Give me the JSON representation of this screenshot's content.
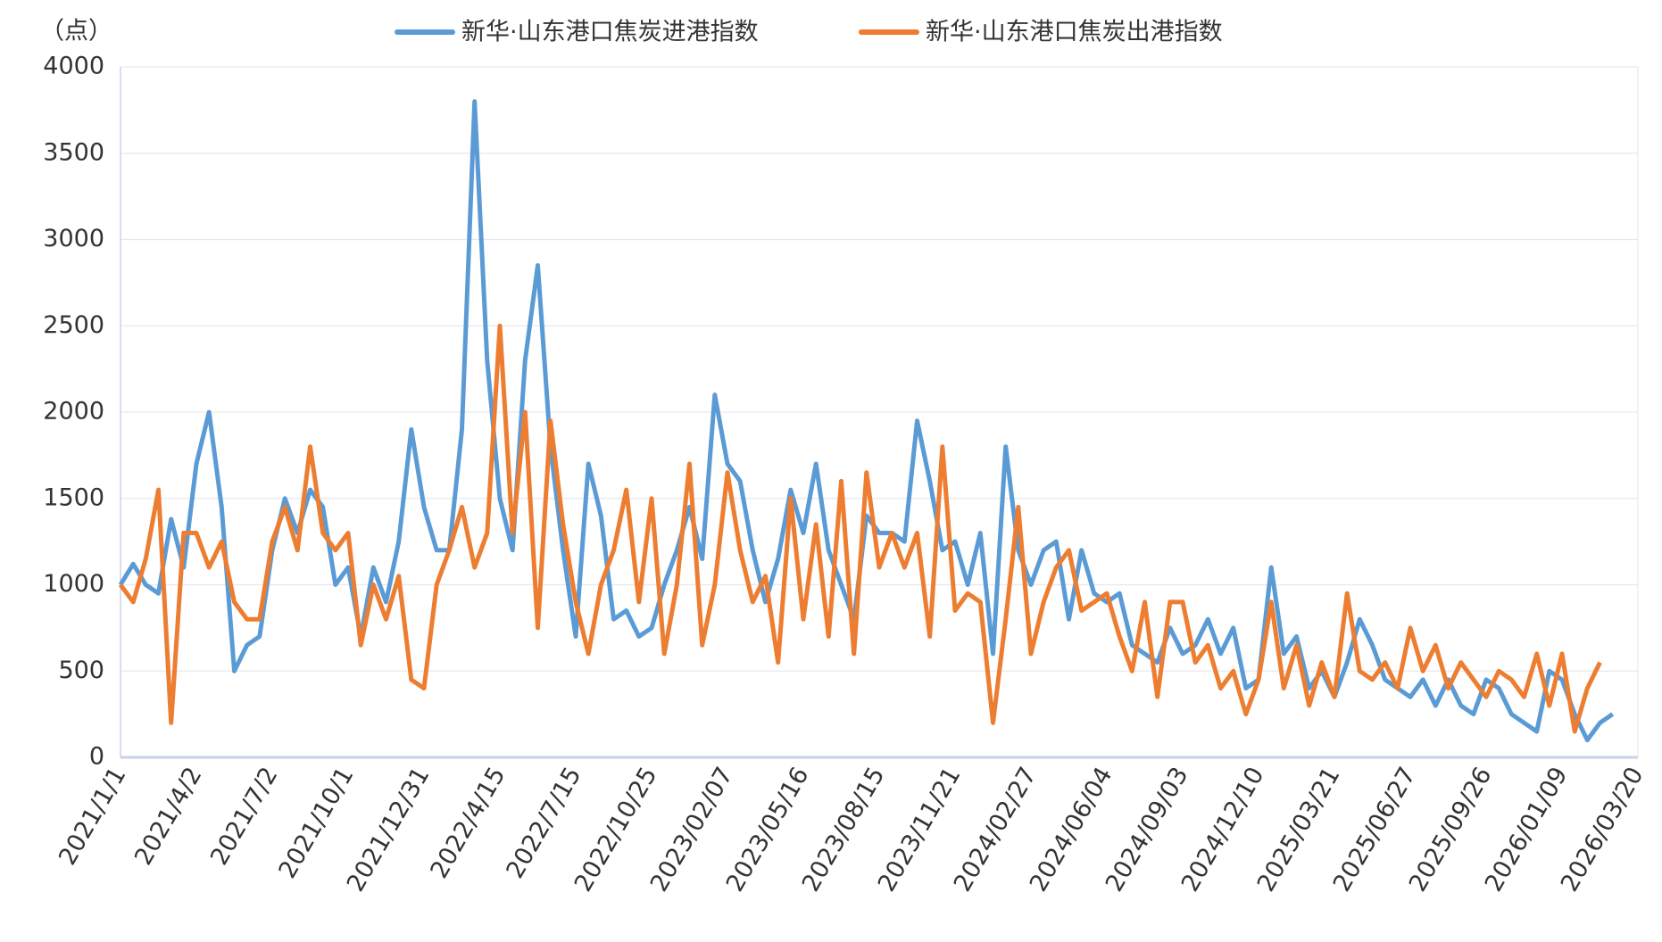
{
  "chart_data": {
    "type": "line",
    "unit_label": "（点）",
    "categories": [
      "2021/1/1",
      null,
      null,
      null,
      null,
      null,
      "2021/4/2",
      null,
      null,
      null,
      null,
      null,
      "2021/7/2",
      null,
      null,
      null,
      null,
      null,
      "2021/10/1",
      null,
      null,
      null,
      null,
      null,
      "2021/12/31",
      null,
      null,
      null,
      null,
      null,
      "2022/4/15",
      null,
      null,
      null,
      null,
      null,
      "2022/7/15",
      null,
      null,
      null,
      null,
      null,
      "2022/10/25",
      null,
      null,
      null,
      null,
      null,
      "2023/02/07",
      null,
      null,
      null,
      null,
      null,
      "2023/05/16",
      null,
      null,
      null,
      null,
      null,
      "2023/08/15",
      null,
      null,
      null,
      null,
      null,
      "2023/11/21",
      null,
      null,
      null,
      null,
      null,
      "2024/02/27",
      null,
      null,
      null,
      null,
      null,
      "2024/06/04",
      null,
      null,
      null,
      null,
      null,
      "2024/09/03",
      null,
      null,
      null,
      null,
      null,
      "2024/12/10",
      null,
      null,
      null,
      null,
      null,
      "2025/03/21",
      null,
      null,
      null,
      null,
      null,
      "2025/06/27",
      null,
      null,
      null,
      null,
      null,
      "2025/09/26",
      null,
      null,
      null,
      null,
      null,
      "2026/01/09",
      null,
      null,
      null,
      null,
      null,
      "2026/03/20"
    ],
    "series": [
      {
        "name": "新华·山东港口焦炭进港指数",
        "color": "#5b9bd5",
        "values": [
          1000,
          1120,
          1000,
          950,
          1380,
          1100,
          1700,
          2000,
          1450,
          500,
          650,
          700,
          1200,
          1500,
          1300,
          1550,
          1450,
          1000,
          1100,
          700,
          1100,
          900,
          1250,
          1900,
          1450,
          1200,
          1200,
          1900,
          3800,
          2300,
          1500,
          1200,
          2300,
          2850,
          1800,
          1200,
          700,
          1700,
          1400,
          800,
          850,
          700,
          750,
          1000,
          1200,
          1450,
          1150,
          2100,
          1700,
          1600,
          1200,
          900,
          1150,
          1550,
          1300,
          1700,
          1200,
          1000,
          800,
          1400,
          1300,
          1300,
          1250,
          1950,
          1600,
          1200,
          1250,
          1000,
          1300,
          600,
          1800,
          1200,
          1000,
          1200,
          1250,
          800,
          1200,
          950,
          900,
          950,
          650,
          600,
          550,
          750,
          600,
          650,
          800,
          600,
          750,
          400,
          450,
          1100,
          600,
          700,
          400,
          500,
          350,
          550,
          800,
          650,
          450,
          400,
          350,
          450,
          300,
          450,
          300,
          250,
          450,
          400,
          250,
          200,
          150,
          500,
          450,
          250,
          100,
          200,
          250,
          null,
          null
        ]
      },
      {
        "name": "新华·山东港口焦炭出港指数",
        "color": "#ed7d31",
        "values": [
          1000,
          900,
          1150,
          1550,
          200,
          1300,
          1300,
          1100,
          1250,
          900,
          800,
          800,
          1250,
          1450,
          1200,
          1800,
          1300,
          1200,
          1300,
          650,
          1000,
          800,
          1050,
          450,
          400,
          1000,
          1200,
          1450,
          1100,
          1300,
          2500,
          1300,
          2000,
          750,
          1950,
          1350,
          900,
          600,
          1000,
          1200,
          1550,
          900,
          1500,
          600,
          1000,
          1700,
          650,
          1000,
          1650,
          1200,
          900,
          1050,
          550,
          1500,
          800,
          1350,
          700,
          1600,
          600,
          1650,
          1100,
          1300,
          1100,
          1300,
          700,
          1800,
          850,
          950,
          900,
          200,
          800,
          1450,
          600,
          900,
          1100,
          1200,
          850,
          900,
          950,
          700,
          500,
          900,
          350,
          900,
          900,
          550,
          650,
          400,
          500,
          250,
          450,
          900,
          400,
          650,
          300,
          550,
          350,
          950,
          500,
          450,
          550,
          400,
          750,
          500,
          650,
          400,
          550,
          450,
          350,
          500,
          450,
          350,
          600,
          300,
          600,
          150,
          400,
          550,
          null,
          null,
          null
        ]
      }
    ],
    "ylim": [
      0,
      4000
    ],
    "yticks": [
      0,
      500,
      1000,
      1500,
      2000,
      2500,
      3000,
      3500,
      4000
    ],
    "grid": true,
    "legend": "top"
  }
}
